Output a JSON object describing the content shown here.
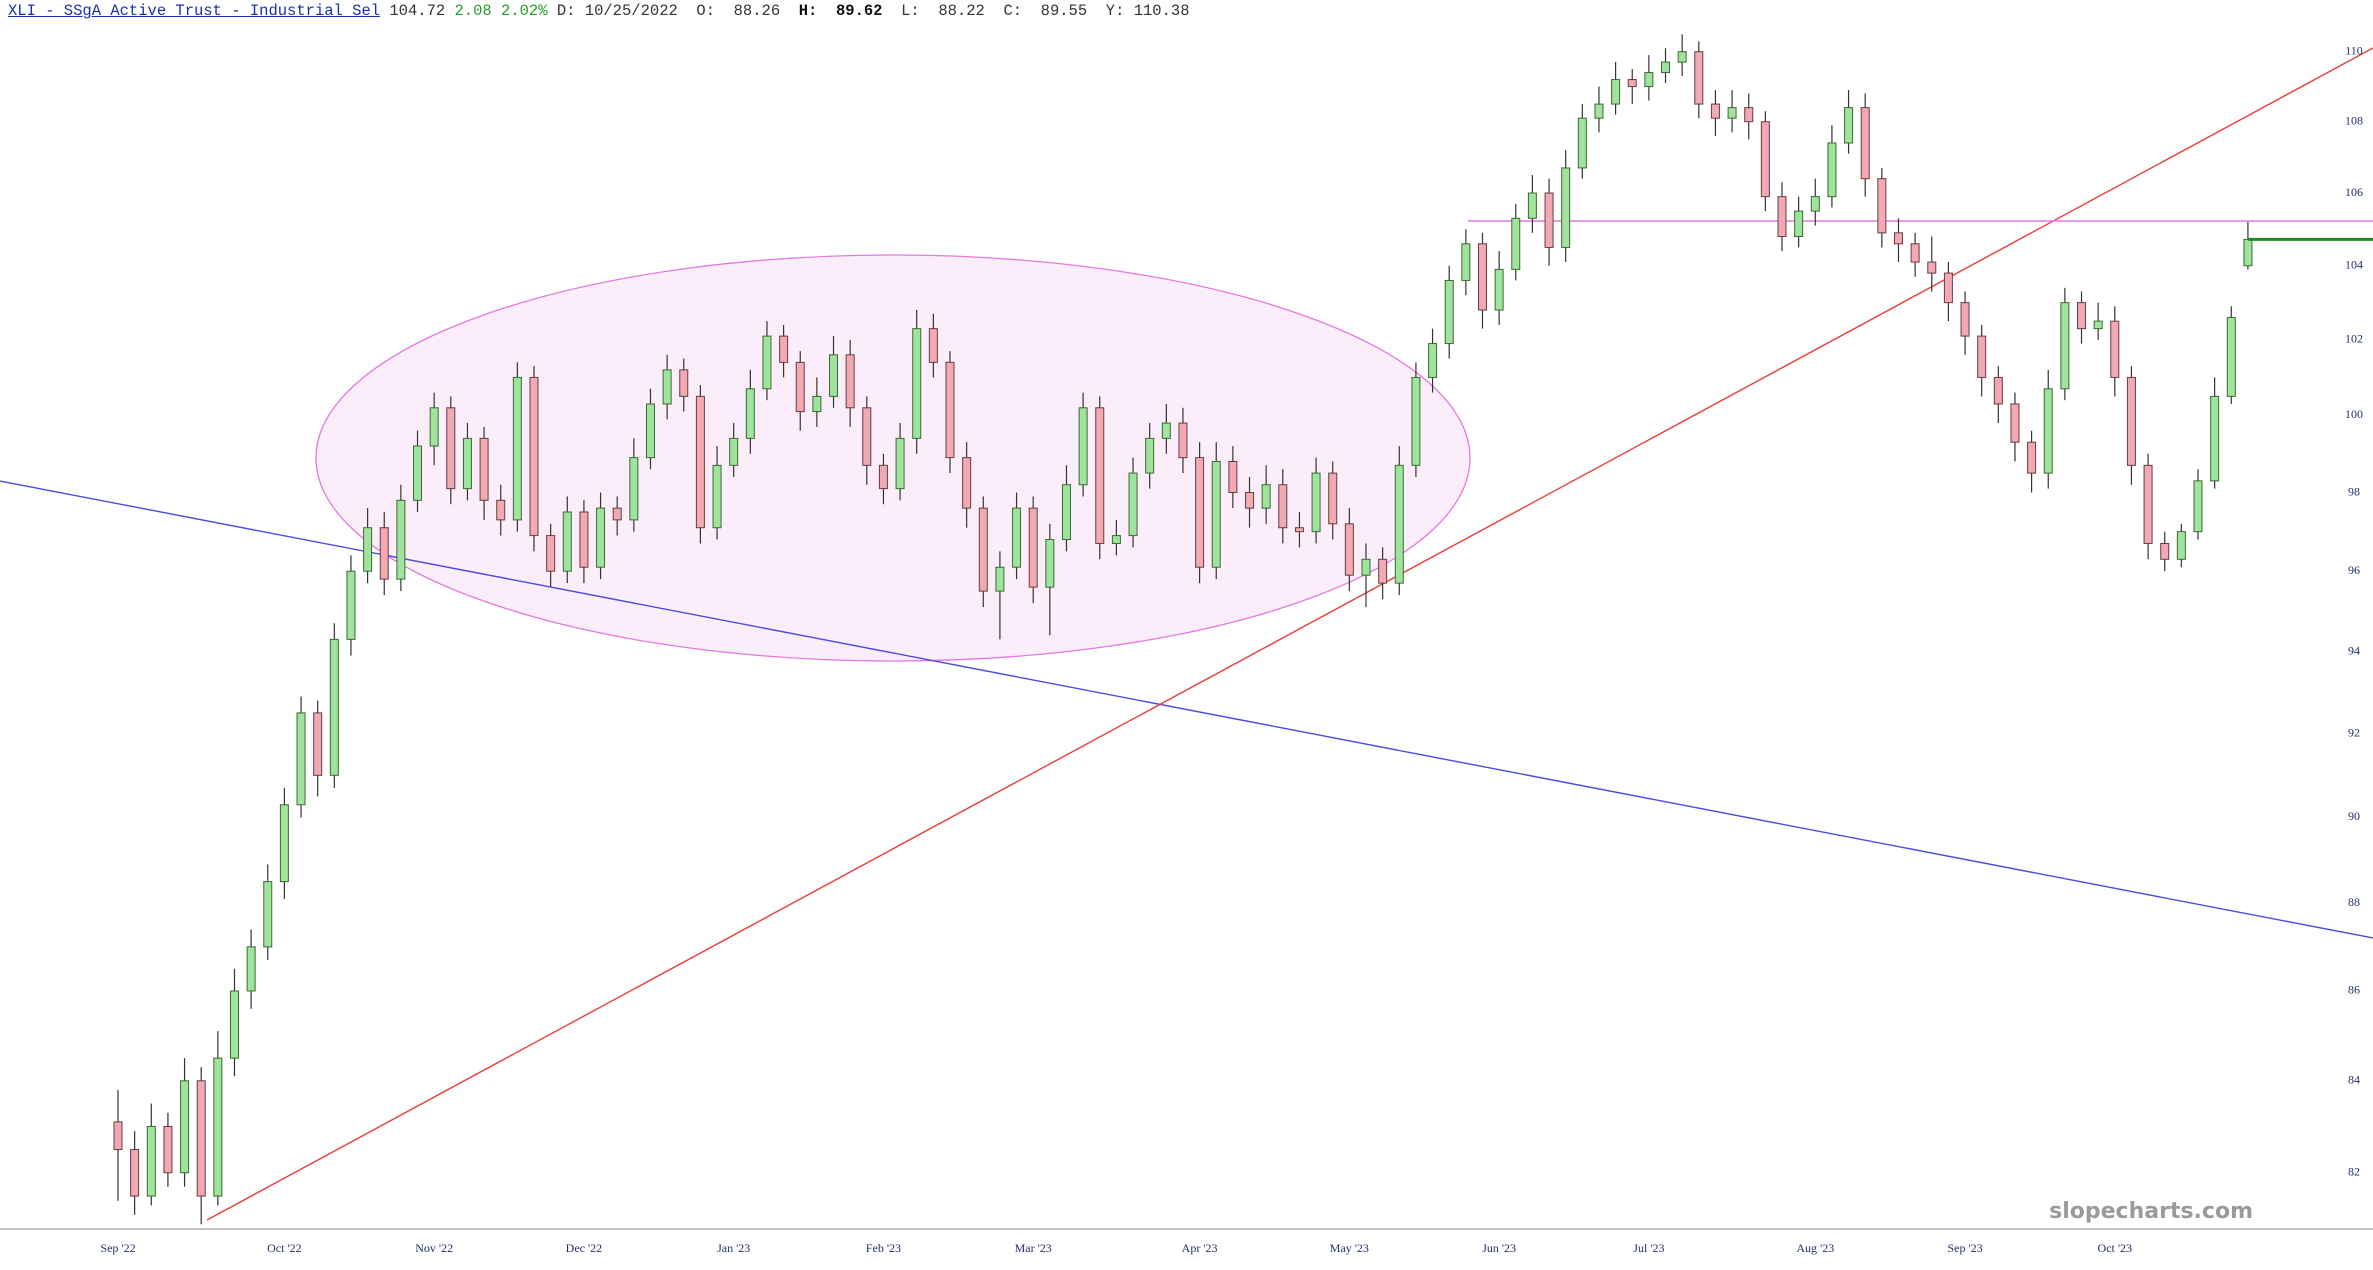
{
  "header": {
    "name": "XLI - SSgA Active Trust - Industrial Sel",
    "last": "104.72",
    "change": "2.08",
    "change_pct": "2.02%",
    "readout": [
      {
        "label": "D:",
        "value": "10/25/2022"
      },
      {
        "label": "O:",
        "value": "88.26"
      },
      {
        "label": "H:",
        "value": "89.62"
      },
      {
        "label": "L:",
        "value": "88.22"
      },
      {
        "label": "C:",
        "value": "89.55"
      },
      {
        "label": "Y:",
        "value": "110.38"
      }
    ]
  },
  "chart_data": {
    "type": "candlestick",
    "log_scale": true,
    "watermark": "slopecharts.com",
    "up_color": "#9fe39c",
    "down_color": "#f1a9b3",
    "ylim": [
      80.8,
      111.5
    ],
    "yticks": [
      82,
      84,
      86,
      88,
      90,
      92,
      94,
      96,
      98,
      100,
      102,
      104,
      106,
      108,
      110
    ],
    "categories": [
      "Sep '22",
      null,
      null,
      null,
      null,
      null,
      null,
      null,
      null,
      null,
      "Oct '22",
      null,
      null,
      null,
      null,
      null,
      null,
      null,
      null,
      "Nov '22",
      null,
      null,
      null,
      null,
      null,
      null,
      null,
      null,
      "Dec '22",
      null,
      null,
      null,
      null,
      null,
      null,
      null,
      null,
      "Jan '23",
      null,
      null,
      null,
      null,
      null,
      null,
      null,
      null,
      "Feb '23",
      null,
      null,
      null,
      null,
      null,
      null,
      null,
      null,
      "Mar '23",
      null,
      null,
      null,
      null,
      null,
      null,
      null,
      null,
      null,
      "Apr '23",
      null,
      null,
      null,
      null,
      null,
      null,
      null,
      null,
      "May '23",
      null,
      null,
      null,
      null,
      null,
      null,
      null,
      null,
      "Jun '23",
      null,
      null,
      null,
      null,
      null,
      null,
      null,
      null,
      "Jul '23",
      null,
      null,
      null,
      null,
      null,
      null,
      null,
      null,
      null,
      "Aug '23",
      null,
      null,
      null,
      null,
      null,
      null,
      null,
      null,
      "Sep '23",
      null,
      null,
      null,
      null,
      null,
      null,
      null,
      null,
      "Oct '23",
      null,
      null,
      null,
      null,
      null,
      null,
      null,
      null
    ],
    "ohlc": [
      [
        83.1,
        83.8,
        81.4,
        82.5
      ],
      [
        82.5,
        82.9,
        81.1,
        81.5
      ],
      [
        81.5,
        83.5,
        81.3,
        83.0
      ],
      [
        83.0,
        83.3,
        81.7,
        82.0
      ],
      [
        82.0,
        84.5,
        81.7,
        84.0
      ],
      [
        84.0,
        84.3,
        80.9,
        81.5
      ],
      [
        81.5,
        85.1,
        81.3,
        84.5
      ],
      [
        84.5,
        86.5,
        84.1,
        86.0
      ],
      [
        86.0,
        87.4,
        85.6,
        87.0
      ],
      [
        87.0,
        88.9,
        86.7,
        88.5
      ],
      [
        88.5,
        90.7,
        88.1,
        90.3
      ],
      [
        90.3,
        92.9,
        90.0,
        92.5
      ],
      [
        92.5,
        92.8,
        90.5,
        91.0
      ],
      [
        91.0,
        94.7,
        90.7,
        94.3
      ],
      [
        94.3,
        96.4,
        93.9,
        96.0
      ],
      [
        96.0,
        97.6,
        95.7,
        97.1
      ],
      [
        97.1,
        97.5,
        95.4,
        95.8
      ],
      [
        95.8,
        98.2,
        95.5,
        97.8
      ],
      [
        97.8,
        99.6,
        97.5,
        99.2
      ],
      [
        99.2,
        100.6,
        98.7,
        100.2
      ],
      [
        100.2,
        100.5,
        97.7,
        98.1
      ],
      [
        98.1,
        99.8,
        97.8,
        99.4
      ],
      [
        99.4,
        99.7,
        97.3,
        97.8
      ],
      [
        97.8,
        98.2,
        96.9,
        97.3
      ],
      [
        97.3,
        101.4,
        97.0,
        101.0
      ],
      [
        101.0,
        101.3,
        96.5,
        96.9
      ],
      [
        96.9,
        97.2,
        95.6,
        96.0
      ],
      [
        96.0,
        97.9,
        95.7,
        97.5
      ],
      [
        97.5,
        97.8,
        95.7,
        96.1
      ],
      [
        96.1,
        98.0,
        95.8,
        97.6
      ],
      [
        97.6,
        97.9,
        96.9,
        97.3
      ],
      [
        97.3,
        99.4,
        97.0,
        98.9
      ],
      [
        98.9,
        100.7,
        98.6,
        100.3
      ],
      [
        100.3,
        101.6,
        99.9,
        101.2
      ],
      [
        101.2,
        101.5,
        100.1,
        100.5
      ],
      [
        100.5,
        100.8,
        96.7,
        97.1
      ],
      [
        97.1,
        99.2,
        96.8,
        98.7
      ],
      [
        98.7,
        99.8,
        98.4,
        99.4
      ],
      [
        99.4,
        101.2,
        99.0,
        100.7
      ],
      [
        100.7,
        102.5,
        100.4,
        102.1
      ],
      [
        102.1,
        102.4,
        101.0,
        101.4
      ],
      [
        101.4,
        101.7,
        99.6,
        100.1
      ],
      [
        100.1,
        101.0,
        99.7,
        100.5
      ],
      [
        100.5,
        102.1,
        100.2,
        101.6
      ],
      [
        101.6,
        102.0,
        99.7,
        100.2
      ],
      [
        100.2,
        100.5,
        98.2,
        98.7
      ],
      [
        98.7,
        99.0,
        97.7,
        98.1
      ],
      [
        98.1,
        99.8,
        97.8,
        99.4
      ],
      [
        99.4,
        102.8,
        99.0,
        102.3
      ],
      [
        102.3,
        102.7,
        101.0,
        101.4
      ],
      [
        101.4,
        101.7,
        98.5,
        98.9
      ],
      [
        98.9,
        99.3,
        97.1,
        97.6
      ],
      [
        97.6,
        97.9,
        95.1,
        95.5
      ],
      [
        95.5,
        96.5,
        94.3,
        96.1
      ],
      [
        96.1,
        98.0,
        95.8,
        97.6
      ],
      [
        97.6,
        97.9,
        95.2,
        95.6
      ],
      [
        95.6,
        97.2,
        94.4,
        96.8
      ],
      [
        96.8,
        98.7,
        96.5,
        98.2
      ],
      [
        98.2,
        100.6,
        97.9,
        100.2
      ],
      [
        100.2,
        100.5,
        96.3,
        96.7
      ],
      [
        96.7,
        97.3,
        96.4,
        96.9
      ],
      [
        96.9,
        98.9,
        96.6,
        98.5
      ],
      [
        98.5,
        99.8,
        98.1,
        99.4
      ],
      [
        99.4,
        100.3,
        99.0,
        99.8
      ],
      [
        99.8,
        100.2,
        98.5,
        98.9
      ],
      [
        98.9,
        99.3,
        95.7,
        96.1
      ],
      [
        96.1,
        99.3,
        95.8,
        98.8
      ],
      [
        98.8,
        99.2,
        97.6,
        98.0
      ],
      [
        98.0,
        98.4,
        97.1,
        97.6
      ],
      [
        97.6,
        98.7,
        97.2,
        98.2
      ],
      [
        98.2,
        98.6,
        96.7,
        97.1
      ],
      [
        97.1,
        97.5,
        96.6,
        97.0
      ],
      [
        97.0,
        98.9,
        96.7,
        98.5
      ],
      [
        98.5,
        98.8,
        96.8,
        97.2
      ],
      [
        97.2,
        97.6,
        95.5,
        95.9
      ],
      [
        95.9,
        96.7,
        95.1,
        96.3
      ],
      [
        96.3,
        96.6,
        95.3,
        95.7
      ],
      [
        95.7,
        99.2,
        95.4,
        98.7
      ],
      [
        98.7,
        101.4,
        98.4,
        101.0
      ],
      [
        101.0,
        102.3,
        100.6,
        101.9
      ],
      [
        101.9,
        104.0,
        101.5,
        103.6
      ],
      [
        103.6,
        105.0,
        103.2,
        104.6
      ],
      [
        104.6,
        104.9,
        102.3,
        102.8
      ],
      [
        102.8,
        104.4,
        102.4,
        103.9
      ],
      [
        103.9,
        105.7,
        103.6,
        105.3
      ],
      [
        105.3,
        106.5,
        104.9,
        106.0
      ],
      [
        106.0,
        106.4,
        104.0,
        104.5
      ],
      [
        104.5,
        107.2,
        104.1,
        106.7
      ],
      [
        106.7,
        108.5,
        106.4,
        108.1
      ],
      [
        108.1,
        109.0,
        107.7,
        108.5
      ],
      [
        108.5,
        109.7,
        108.2,
        109.2
      ],
      [
        109.2,
        109.5,
        108.5,
        109.0
      ],
      [
        109.0,
        109.9,
        108.6,
        109.4
      ],
      [
        109.4,
        110.1,
        109.1,
        109.7
      ],
      [
        109.7,
        110.5,
        109.3,
        110.0
      ],
      [
        110.0,
        110.3,
        108.1,
        108.5
      ],
      [
        108.5,
        108.9,
        107.6,
        108.1
      ],
      [
        108.1,
        108.9,
        107.7,
        108.4
      ],
      [
        108.4,
        108.8,
        107.5,
        108.0
      ],
      [
        108.0,
        108.3,
        105.5,
        105.9
      ],
      [
        105.9,
        106.3,
        104.4,
        104.8
      ],
      [
        104.8,
        105.9,
        104.5,
        105.5
      ],
      [
        105.5,
        106.4,
        105.1,
        105.9
      ],
      [
        105.9,
        107.9,
        105.6,
        107.4
      ],
      [
        107.4,
        108.9,
        107.1,
        108.4
      ],
      [
        108.4,
        108.8,
        105.9,
        106.4
      ],
      [
        106.4,
        106.7,
        104.5,
        104.9
      ],
      [
        104.9,
        105.3,
        104.1,
        104.6
      ],
      [
        104.6,
        104.9,
        103.7,
        104.1
      ],
      [
        104.1,
        104.8,
        103.3,
        103.8
      ],
      [
        103.8,
        104.1,
        102.5,
        103.0
      ],
      [
        103.0,
        103.3,
        101.6,
        102.1
      ],
      [
        102.1,
        102.4,
        100.5,
        101.0
      ],
      [
        101.0,
        101.3,
        99.8,
        100.3
      ],
      [
        100.3,
        100.6,
        98.8,
        99.3
      ],
      [
        99.3,
        99.6,
        98.0,
        98.5
      ],
      [
        98.5,
        101.2,
        98.1,
        100.7
      ],
      [
        100.7,
        103.4,
        100.4,
        103.0
      ],
      [
        103.0,
        103.3,
        101.9,
        102.3
      ],
      [
        102.3,
        103.0,
        102.0,
        102.5
      ],
      [
        102.5,
        102.9,
        100.5,
        101.0
      ],
      [
        101.0,
        101.3,
        98.2,
        98.7
      ],
      [
        98.7,
        99.0,
        96.3,
        96.7
      ],
      [
        96.7,
        97.0,
        96.0,
        96.3
      ],
      [
        96.3,
        97.2,
        96.1,
        97.0
      ],
      [
        97.0,
        98.6,
        96.8,
        98.3
      ],
      [
        98.3,
        101.0,
        98.1,
        100.5
      ],
      [
        100.5,
        102.9,
        100.3,
        102.6
      ],
      [
        104.0,
        105.2,
        103.9,
        104.72
      ]
    ]
  }
}
